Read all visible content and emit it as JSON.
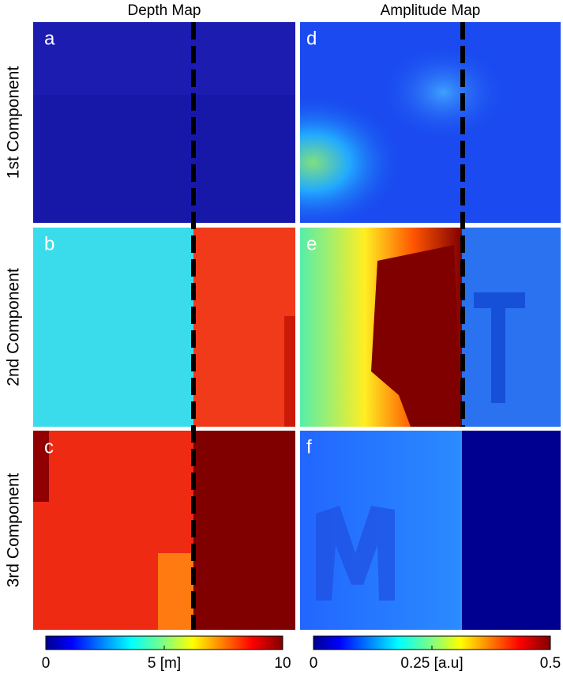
{
  "columns": [
    "Depth Map",
    "Amplitude Map"
  ],
  "rows": [
    "1st Component",
    "2nd Component",
    "3rd Component"
  ],
  "panels": [
    "a",
    "b",
    "c",
    "d",
    "e",
    "f"
  ],
  "colorbars": [
    {
      "lim": [
        0,
        10
      ],
      "ticks": [
        0,
        {
          "value": 5,
          "label": "5 [m]"
        },
        10
      ]
    },
    {
      "lim": [
        0,
        0.5
      ],
      "ticks": [
        0,
        {
          "value": 0.25,
          "label": "0.25 [a.u]"
        },
        0.5
      ]
    }
  ]
}
